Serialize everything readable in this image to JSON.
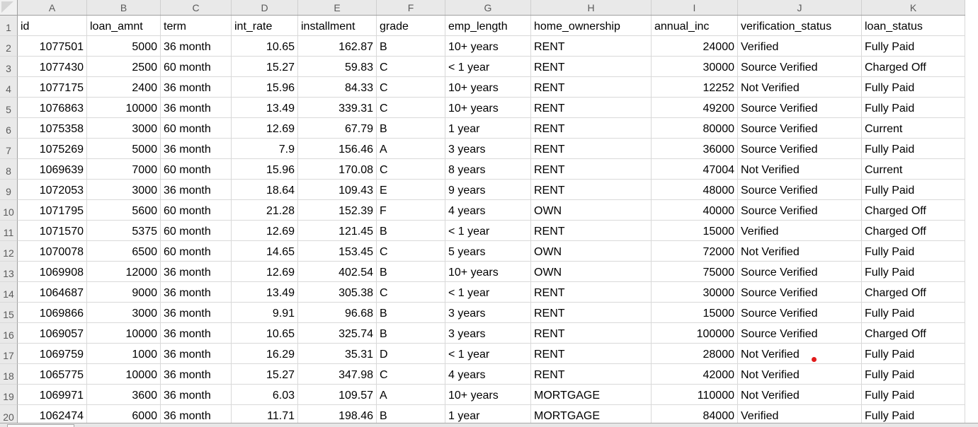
{
  "sheet": {
    "column_letters": [
      "A",
      "B",
      "C",
      "D",
      "E",
      "F",
      "G",
      "H",
      "I",
      "J",
      "K"
    ],
    "row_numbers": [
      1,
      2,
      3,
      4,
      5,
      6,
      7,
      8,
      9,
      10,
      11,
      12,
      13,
      14,
      15,
      16,
      17,
      18,
      19,
      20
    ],
    "field_headers": [
      "id",
      "loan_amnt",
      "term",
      "int_rate",
      "installment",
      "grade",
      "emp_length",
      "home_ownership",
      "annual_inc",
      "verification_status",
      "loan_status"
    ],
    "records": [
      [
        1077501,
        5000,
        "36 month",
        10.65,
        162.87,
        "B",
        "10+ years",
        "RENT",
        24000,
        "Verified",
        "Fully Paid"
      ],
      [
        1077430,
        2500,
        "60 month",
        15.27,
        59.83,
        "C",
        "< 1 year",
        "RENT",
        30000,
        "Source Verified",
        "Charged Off"
      ],
      [
        1077175,
        2400,
        "36 month",
        15.96,
        84.33,
        "C",
        "10+ years",
        "RENT",
        12252,
        "Not Verified",
        "Fully Paid"
      ],
      [
        1076863,
        10000,
        "36 month",
        13.49,
        339.31,
        "C",
        "10+ years",
        "RENT",
        49200,
        "Source Verified",
        "Fully Paid"
      ],
      [
        1075358,
        3000,
        "60 month",
        12.69,
        67.79,
        "B",
        "1 year",
        "RENT",
        80000,
        "Source Verified",
        "Current"
      ],
      [
        1075269,
        5000,
        "36 month",
        7.9,
        156.46,
        "A",
        "3 years",
        "RENT",
        36000,
        "Source Verified",
        "Fully Paid"
      ],
      [
        1069639,
        7000,
        "60 month",
        15.96,
        170.08,
        "C",
        "8 years",
        "RENT",
        47004,
        "Not Verified",
        "Current"
      ],
      [
        1072053,
        3000,
        "36 month",
        18.64,
        109.43,
        "E",
        "9 years",
        "RENT",
        48000,
        "Source Verified",
        "Fully Paid"
      ],
      [
        1071795,
        5600,
        "60 month",
        21.28,
        152.39,
        "F",
        "4 years",
        "OWN",
        40000,
        "Source Verified",
        "Charged Off"
      ],
      [
        1071570,
        5375,
        "60 month",
        12.69,
        121.45,
        "B",
        "< 1 year",
        "RENT",
        15000,
        "Verified",
        "Charged Off"
      ],
      [
        1070078,
        6500,
        "60 month",
        14.65,
        153.45,
        "C",
        "5 years",
        "OWN",
        72000,
        "Not Verified",
        "Fully Paid"
      ],
      [
        1069908,
        12000,
        "36 month",
        12.69,
        402.54,
        "B",
        "10+ years",
        "OWN",
        75000,
        "Source Verified",
        "Fully Paid"
      ],
      [
        1064687,
        9000,
        "36 month",
        13.49,
        305.38,
        "C",
        "< 1 year",
        "RENT",
        30000,
        "Source Verified",
        "Charged Off"
      ],
      [
        1069866,
        3000,
        "36 month",
        9.91,
        96.68,
        "B",
        "3 years",
        "RENT",
        15000,
        "Source Verified",
        "Fully Paid"
      ],
      [
        1069057,
        10000,
        "36 month",
        10.65,
        325.74,
        "B",
        "3 years",
        "RENT",
        100000,
        "Source Verified",
        "Charged Off"
      ],
      [
        1069759,
        1000,
        "36 month",
        16.29,
        35.31,
        "D",
        "< 1 year",
        "RENT",
        28000,
        "Not Verified",
        "Fully Paid"
      ],
      [
        1065775,
        10000,
        "36 month",
        15.27,
        347.98,
        "C",
        "4 years",
        "RENT",
        42000,
        "Not Verified",
        "Fully Paid"
      ],
      [
        1069971,
        3600,
        "36 month",
        6.03,
        109.57,
        "A",
        "10+ years",
        "MORTGAGE",
        110000,
        "Not Verified",
        "Fully Paid"
      ],
      [
        1062474,
        6000,
        "36 month",
        11.71,
        198.46,
        "B",
        "1 year",
        "MORTGAGE",
        84000,
        "Verified",
        "Fully Paid"
      ]
    ],
    "annotation": {
      "type": "red-dot",
      "cell": "J17",
      "after_text": "Not Verified"
    }
  },
  "colors": {
    "header_bg": "#e9e9e9",
    "corner_bg": "#f1f1f1",
    "header_text": "#5a5a5a",
    "header_border": "#9e9e9e",
    "header_sep": "#cfcfcf",
    "gridline": "#d9d9d9",
    "cell_text": "#000000",
    "triangle": "#d5d5d5",
    "red_dot": "#e11b1b",
    "bottom_bar_bg": "#e7e7e7",
    "bottom_bar_border": "#a8a8a8",
    "active_tab_bg": "#fafafa"
  }
}
